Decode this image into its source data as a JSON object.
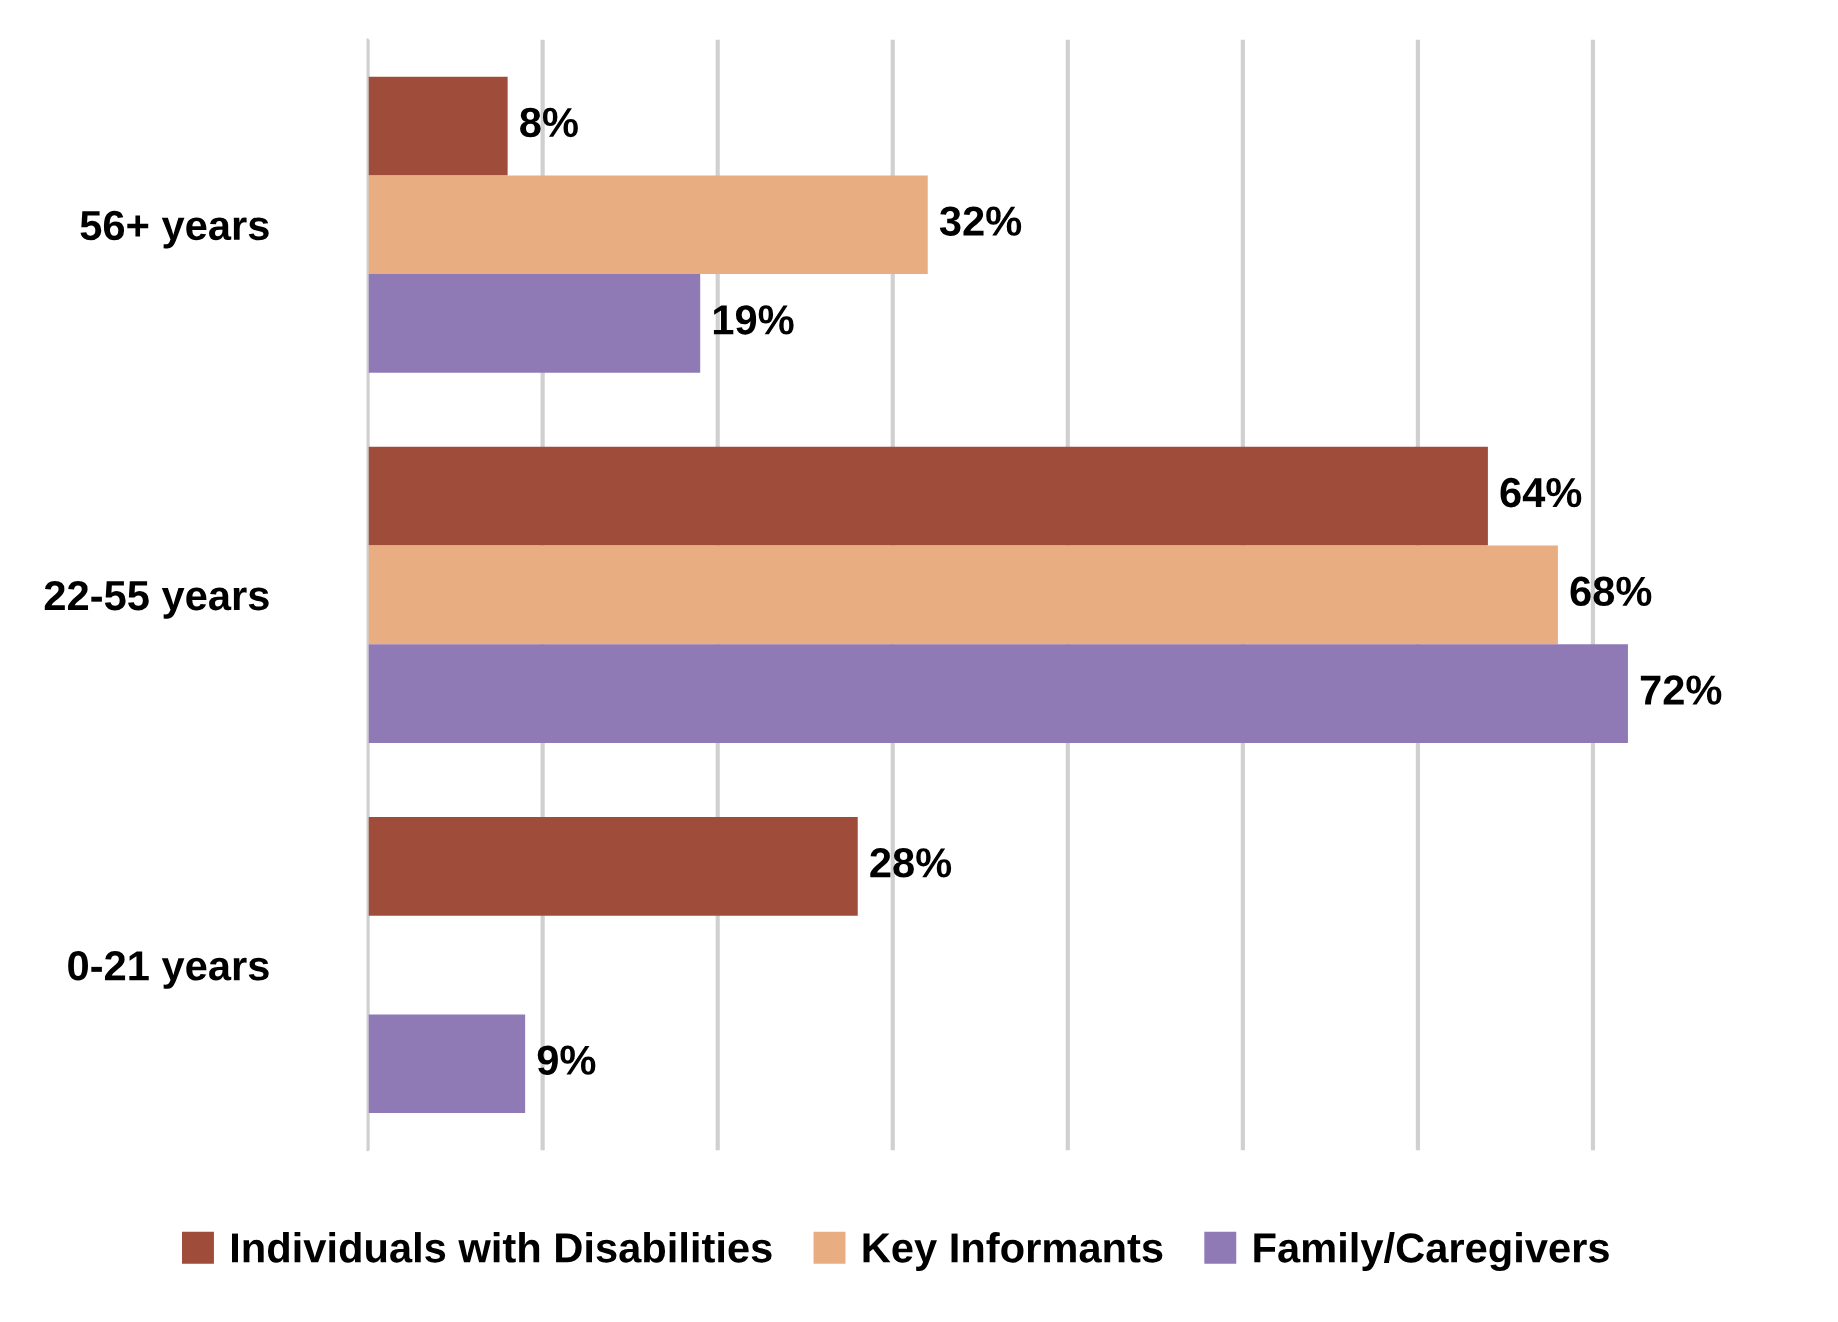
{
  "chart_data": {
    "type": "bar",
    "orientation": "horizontal",
    "categories": [
      "56+ years",
      "22-55 years",
      "0-21 years"
    ],
    "series": [
      {
        "name": "Individuals with Disabilities",
        "color": "#a04c3b",
        "values": [
          8,
          64,
          28
        ],
        "value_labels": [
          "8%",
          "64%",
          "28%"
        ]
      },
      {
        "name": "Key Informants",
        "color": "#e9ad82",
        "values": [
          32,
          68,
          null
        ],
        "value_labels": [
          "32%",
          "68%",
          null
        ]
      },
      {
        "name": "Family/Caregivers",
        "color": "#907ab6",
        "values": [
          19,
          72,
          9
        ],
        "value_labels": [
          "19%",
          "72%",
          "9%"
        ]
      }
    ],
    "tick_labels": "y",
    "grid": "x",
    "legend": "bottom"
  }
}
